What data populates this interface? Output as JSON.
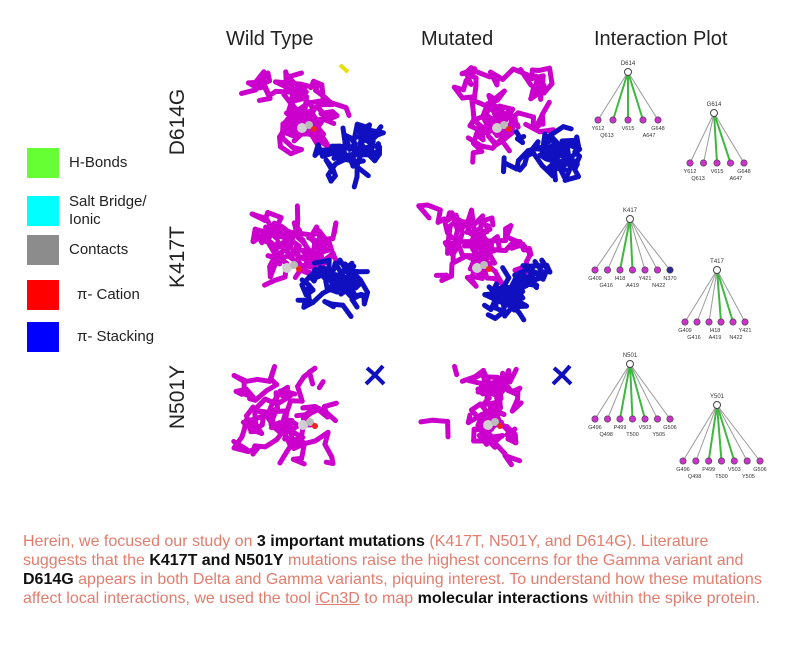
{
  "columns": [
    "Wild Type",
    "Mutated",
    "Interaction Plot"
  ],
  "rows": [
    "D614G",
    "K417T",
    "N501Y"
  ],
  "legend": [
    {
      "label": "H-Bonds",
      "color": "#66ff33"
    },
    {
      "label": "Salt Bridge/ Ionic",
      "color": "#00ffff"
    },
    {
      "label": "Contacts",
      "color": "#8c8c8c"
    },
    {
      "label": "π- Cation",
      "color": "#ff0000"
    },
    {
      "label": "π- Stacking",
      "color": "#0000ff"
    }
  ],
  "colors": {
    "protein": "#cc00cc",
    "ligand": "#1010c0",
    "bond": "#3fb83f",
    "contact": "#9a9a9a",
    "node": "#cc33cc"
  },
  "plots": [
    {
      "center": "D614",
      "residues": [
        "Y612",
        "V615",
        "G648",
        "Q613",
        "A647"
      ]
    },
    {
      "center": "G614",
      "residues": [
        "Y612",
        "V615",
        "G648",
        "Q613",
        "A647"
      ]
    },
    {
      "center": "K417",
      "residues": [
        "G409",
        "I418",
        "Y421",
        "N370",
        "G416",
        "A419",
        "N422"
      ]
    },
    {
      "center": "T417",
      "residues": [
        "G409",
        "I418",
        "Y421",
        "G416",
        "A419",
        "N422"
      ]
    },
    {
      "center": "N501",
      "residues": [
        "G496",
        "P499",
        "V503",
        "G506",
        "Q498",
        "T500",
        "Y505"
      ]
    },
    {
      "center": "Y501",
      "residues": [
        "G496",
        "P499",
        "V503",
        "G506",
        "Q498",
        "T500",
        "Y505"
      ]
    }
  ],
  "paragraph": {
    "s1": "Herein, we focused our study on ",
    "b1": "3 important mutations",
    "s2": " (K417T, N501Y, and D614G). Literature suggests that the ",
    "b2": "K417T and N501Y",
    "s3": " mutations raise the highest concerns for the Gamma variant and ",
    "b3": "D614G",
    "s4": " appears in both Delta and Gamma variants, piquing interest. To understand how these mutations affect local interactions, we used the tool ",
    "link": "iCn3D",
    "s5": " to map ",
    "b4": "molecular interactions",
    "s6": " within the spike protein."
  }
}
